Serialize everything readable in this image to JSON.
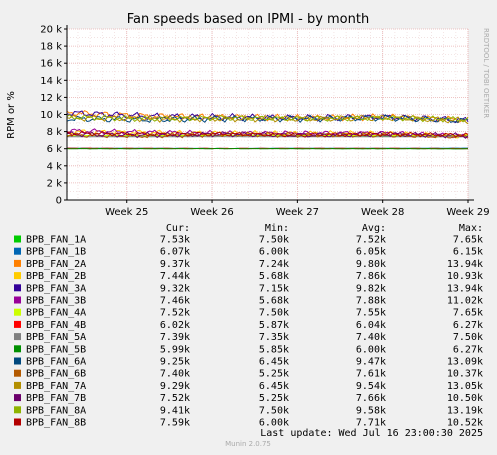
{
  "chart_data": {
    "type": "line",
    "title": "Fan speeds based on IPMI - by month",
    "ylabel": "RPM or %",
    "side_label": "RRDTOOL / TOBI OETIKER",
    "footer": "Munin 2.0.75",
    "last_update": "Last update: Wed Jul 16 23:00:30 2025",
    "ylim": [
      0,
      20000
    ],
    "yticks": [
      {
        "v": 0,
        "label": "0"
      },
      {
        "v": 2000,
        "label": "2 k"
      },
      {
        "v": 4000,
        "label": "4 k"
      },
      {
        "v": 6000,
        "label": "6 k"
      },
      {
        "v": 8000,
        "label": "8 k"
      },
      {
        "v": 10000,
        "label": "10 k"
      },
      {
        "v": 12000,
        "label": "12 k"
      },
      {
        "v": 14000,
        "label": "14 k"
      },
      {
        "v": 16000,
        "label": "16 k"
      },
      {
        "v": 18000,
        "label": "18 k"
      },
      {
        "v": 20000,
        "label": "20 k"
      }
    ],
    "xlim": [
      24.3,
      29.0
    ],
    "xticks": [
      {
        "v": 25,
        "label": "Week 25"
      },
      {
        "v": 26,
        "label": "Week 26"
      },
      {
        "v": 27,
        "label": "Week 27"
      },
      {
        "v": 28,
        "label": "Week 28"
      },
      {
        "v": 29,
        "label": "Week 29"
      }
    ],
    "grid": true,
    "legend_headers": {
      "cur": "Cur:",
      "min": "Min:",
      "avg": "Avg:",
      "max": "Max:"
    },
    "series": [
      {
        "name": "BPB_FAN_1A",
        "color": "#00cc00",
        "cur": "7.53k",
        "min": "7.50k",
        "avg": "7.52k",
        "max": "7.65k",
        "values": [
          7530,
          7520,
          7540,
          7510,
          7500,
          7530
        ]
      },
      {
        "name": "BPB_FAN_1B",
        "color": "#0066b3",
        "cur": "6.07k",
        "min": "6.00k",
        "avg": "6.05k",
        "max": "6.15k",
        "values": [
          6070,
          6050,
          6030,
          6060,
          6050,
          6070
        ]
      },
      {
        "name": "BPB_FAN_2A",
        "color": "#ff8000",
        "cur": "9.37k",
        "min": "7.24k",
        "avg": "9.80k",
        "max": "13.94k",
        "values": [
          10200,
          9800,
          9700,
          9600,
          9700,
          9370
        ]
      },
      {
        "name": "BPB_FAN_2B",
        "color": "#ffcc00",
        "cur": "7.44k",
        "min": "5.68k",
        "avg": "7.86k",
        "max": "10.93k",
        "values": [
          8000,
          7900,
          7800,
          7800,
          7800,
          7440
        ]
      },
      {
        "name": "BPB_FAN_3A",
        "color": "#330099",
        "cur": "9.32k",
        "min": "7.15k",
        "avg": "9.82k",
        "max": "13.94k",
        "values": [
          10200,
          9800,
          9700,
          9600,
          9700,
          9320
        ]
      },
      {
        "name": "BPB_FAN_3B",
        "color": "#990099",
        "cur": "7.46k",
        "min": "5.68k",
        "avg": "7.88k",
        "max": "11.02k",
        "values": [
          8100,
          7900,
          7800,
          7800,
          7800,
          7460
        ]
      },
      {
        "name": "BPB_FAN_4A",
        "color": "#ccff00",
        "cur": "7.52k",
        "min": "7.50k",
        "avg": "7.55k",
        "max": "7.65k",
        "values": [
          7540,
          7550,
          7560,
          7550,
          7550,
          7520
        ]
      },
      {
        "name": "BPB_FAN_4B",
        "color": "#ff0000",
        "cur": "6.02k",
        "min": "5.87k",
        "avg": "6.04k",
        "max": "6.27k",
        "values": [
          6050,
          6040,
          6030,
          6040,
          6040,
          6020
        ]
      },
      {
        "name": "BPB_FAN_5A",
        "color": "#808080",
        "cur": "7.39k",
        "min": "7.35k",
        "avg": "7.40k",
        "max": "7.50k",
        "values": [
          7400,
          7400,
          7410,
          7400,
          7400,
          7390
        ]
      },
      {
        "name": "BPB_FAN_5B",
        "color": "#008f00",
        "cur": "5.99k",
        "min": "5.85k",
        "avg": "6.00k",
        "max": "6.27k",
        "values": [
          6000,
          6000,
          6010,
          6000,
          6000,
          5990
        ]
      },
      {
        "name": "BPB_FAN_6A",
        "color": "#00487d",
        "cur": "9.25k",
        "min": "6.45k",
        "avg": "9.47k",
        "max": "13.09k",
        "values": [
          9500,
          9400,
          9500,
          9500,
          9600,
          9250
        ]
      },
      {
        "name": "BPB_FAN_6B",
        "color": "#b35a00",
        "cur": "7.40k",
        "min": "5.25k",
        "avg": "7.61k",
        "max": "10.37k",
        "values": [
          7600,
          7500,
          7700,
          7600,
          7600,
          7400
        ]
      },
      {
        "name": "BPB_FAN_7A",
        "color": "#b38f00",
        "cur": "9.29k",
        "min": "6.45k",
        "avg": "9.54k",
        "max": "13.05k",
        "values": [
          9600,
          9500,
          9500,
          9500,
          9600,
          9290
        ]
      },
      {
        "name": "BPB_FAN_7B",
        "color": "#6b006b",
        "cur": "7.52k",
        "min": "5.25k",
        "avg": "7.66k",
        "max": "10.50k",
        "values": [
          7700,
          7600,
          7700,
          7600,
          7700,
          7520
        ]
      },
      {
        "name": "BPB_FAN_8A",
        "color": "#8fb300",
        "cur": "9.41k",
        "min": "7.50k",
        "avg": "9.58k",
        "max": "13.19k",
        "values": [
          9700,
          9500,
          9600,
          9500,
          9600,
          9410
        ]
      },
      {
        "name": "BPB_FAN_8B",
        "color": "#b30000",
        "cur": "7.59k",
        "min": "6.00k",
        "avg": "7.71k",
        "max": "10.52k",
        "values": [
          7800,
          7700,
          7700,
          7600,
          7700,
          7590
        ]
      }
    ]
  }
}
